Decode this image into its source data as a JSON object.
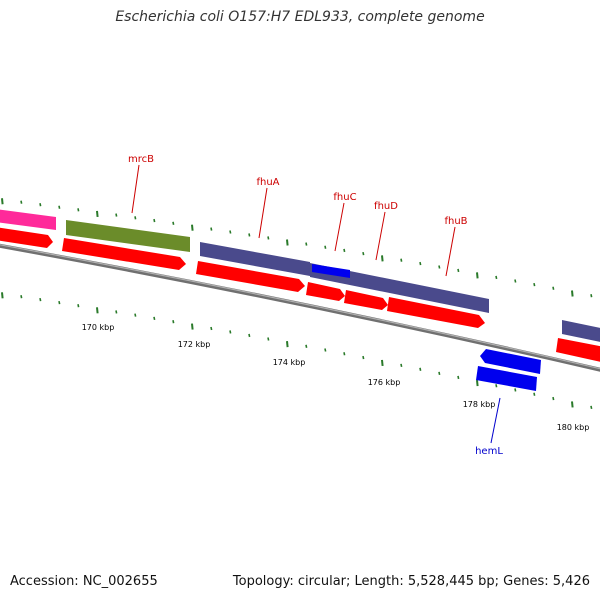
{
  "title": "Escherichia coli O157:H7 EDL933, complete genome",
  "footer": {
    "accession": "Accession: NC_002655",
    "summary": "Topology: circular; Length: 5,528,445 bp; Genes: 5,426"
  },
  "colors": {
    "forward_gene": "#ff0000",
    "cds_purple": "#4a4a8c",
    "cds_olive": "#6b8c2a",
    "cds_pink": "#ff2a9a",
    "cds_blue": "#0000ee",
    "backbone": "#8a8a8a",
    "tick": "#2a7a2a",
    "label_red": "#cc0000",
    "label_blue": "#0000cc"
  },
  "scale_labels": [
    "170 kbp",
    "172 kbp",
    "174 kbp",
    "176 kbp",
    "178 kbp",
    "180 kbp"
  ],
  "gene_labels": [
    {
      "name": "mrcB",
      "color": "label_red"
    },
    {
      "name": "fhuA",
      "color": "label_red"
    },
    {
      "name": "fhuC",
      "color": "label_red"
    },
    {
      "name": "fhuD",
      "color": "label_red"
    },
    {
      "name": "fhuB",
      "color": "label_red"
    },
    {
      "name": "hemL",
      "color": "label_blue"
    }
  ]
}
